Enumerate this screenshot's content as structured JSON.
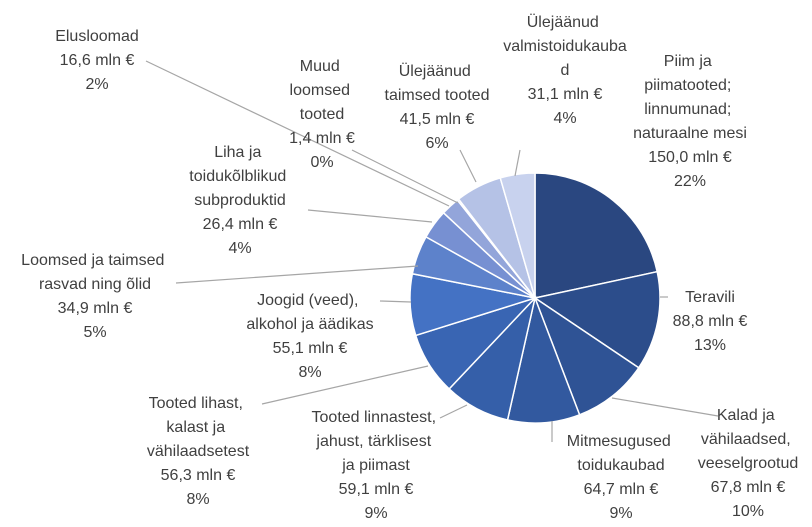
{
  "chart_data": {
    "type": "pie",
    "categories": [
      "Piim ja piimatooted; linnumunad; naturaalne mesi",
      "Teravili",
      "Kalad ja vähilaadsed, veeselgrootud",
      "Mitmesugused toidukaubad",
      "Tooted linnastest, jahust, tärklisest ja piimast",
      "Tooted lihast, kalast ja vähilaadsetest",
      "Joogid (veed), alkohol ja äädikas",
      "Loomsed ja taimsed rasvad ning õlid",
      "Liha ja toidukõlblikud subproduktid",
      "Elusloomad",
      "Muud loomsed tooted",
      "Ülejäänud taimsed tooted",
      "Ülejäänud valmistoidukaubad"
    ],
    "values": [
      150.0,
      88.8,
      67.8,
      64.7,
      59.1,
      56.3,
      55.1,
      34.9,
      26.4,
      16.6,
      1.4,
      41.5,
      31.1
    ],
    "value_labels": [
      "150,0 mln €",
      "88,8 mln €",
      "67,8 mln €",
      "64,7 mln €",
      "59,1 mln €",
      "56,3 mln €",
      "55,1 mln €",
      "34,9 mln €",
      "26,4 mln €",
      "16,6 mln €",
      "1,4 mln €",
      "41,5 mln €",
      "31,1 mln €"
    ],
    "percents": [
      22,
      13,
      10,
      9,
      9,
      8,
      8,
      5,
      4,
      2,
      0,
      6,
      4
    ],
    "percent_labels": [
      "22%",
      "13%",
      "10%",
      "9%",
      "9%",
      "8%",
      "8%",
      "5%",
      "4%",
      "2%",
      "0%",
      "6%",
      "4%"
    ],
    "colors": [
      "#2a4780",
      "#2c4d8b",
      "#2f5395",
      "#32599f",
      "#355fa9",
      "#3965b3",
      "#4472c4",
      "#5d82cb",
      "#7790d2",
      "#93a5da",
      "#a3b2df",
      "#b5c2e6",
      "#c8d2ee"
    ]
  }
}
